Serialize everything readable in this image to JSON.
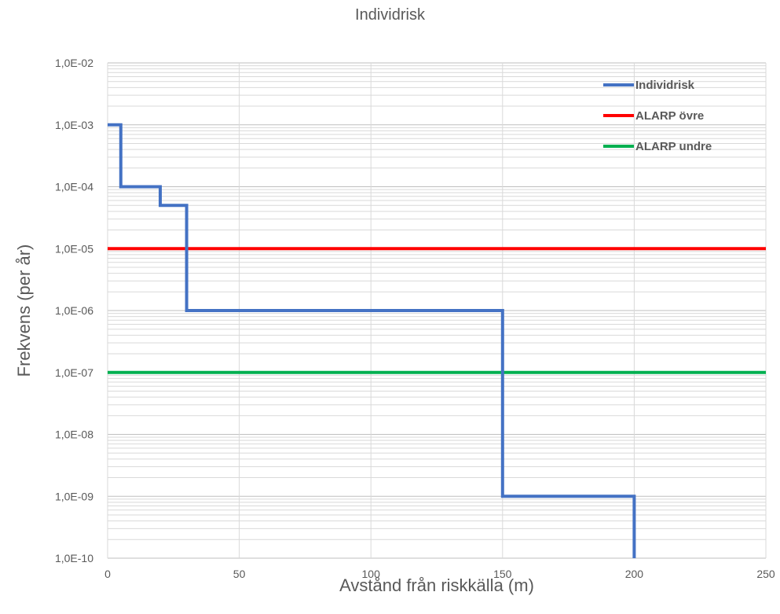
{
  "chart_data": {
    "type": "line",
    "title": "Individrisk",
    "xlabel": "Avstånd från riskkälla (m)",
    "ylabel": "Frekvens (per år)",
    "xlim": [
      0,
      250
    ],
    "ylim": [
      1e-10,
      0.01
    ],
    "yscale": "log",
    "x_ticks": [
      0,
      50,
      100,
      150,
      200,
      250
    ],
    "x_tick_labels": [
      "0",
      "50",
      "100",
      "150",
      "200",
      "250"
    ],
    "y_ticks": [
      0.01,
      0.001,
      0.0001,
      1e-05,
      1e-06,
      1e-07,
      1e-08,
      1e-09,
      1e-10
    ],
    "y_tick_labels": [
      "1,0E-02",
      "1,0E-03",
      "1,0E-04",
      "1,0E-05",
      "1,0E-06",
      "1,0E-07",
      "1,0E-08",
      "1,0E-09",
      "1,0E-10"
    ],
    "grid": true,
    "legend_position": "top-right",
    "series": [
      {
        "name": "Individrisk",
        "color": "#4472c4",
        "x": [
          0,
          5,
          5,
          20,
          20,
          30,
          30,
          150,
          150,
          200,
          200
        ],
        "y": [
          0.001,
          0.001,
          0.0001,
          0.0001,
          5e-05,
          5e-05,
          1e-06,
          1e-06,
          1e-09,
          1e-09,
          1e-10
        ]
      },
      {
        "name": "ALARP övre",
        "color": "#ff0000",
        "x": [
          0,
          250
        ],
        "y": [
          1e-05,
          1e-05
        ]
      },
      {
        "name": "ALARP undre",
        "color": "#00b050",
        "x": [
          0,
          250
        ],
        "y": [
          1e-07,
          1e-07
        ]
      }
    ]
  }
}
